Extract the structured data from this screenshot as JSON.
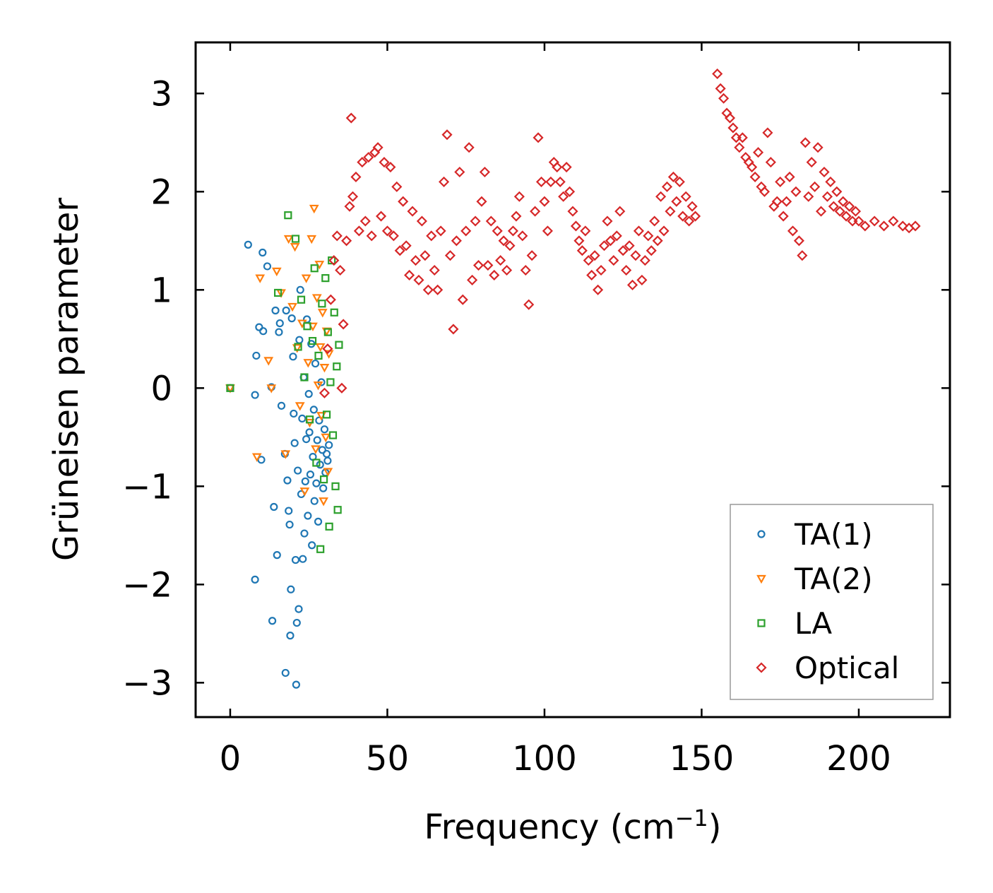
{
  "chart_data": {
    "type": "scatter",
    "title": "",
    "xlabel": "Frequency (cm",
    "xlabel_sup": "−1",
    "xlabel_end": ")",
    "ylabel": "Grüneisen parameter",
    "xlim": [
      -11,
      229
    ],
    "ylim": [
      -3.35,
      3.52
    ],
    "xticks": [
      0,
      50,
      100,
      150,
      200
    ],
    "xtick_labels": [
      "0",
      "50",
      "100",
      "150",
      "200"
    ],
    "yticks": [
      -3,
      -2,
      -1,
      0,
      1,
      2,
      3
    ],
    "ytick_labels": [
      "−3",
      "−2",
      "−1",
      "0",
      "1",
      "2",
      "3"
    ],
    "legend_position": "bottom-right",
    "series": [
      {
        "name": "TA(1)",
        "marker": "circle",
        "color": "#1f77b4",
        "points": [
          [
            0,
            0
          ],
          [
            5.7,
            1.46
          ],
          [
            7.9,
            -0.07
          ],
          [
            7.9,
            -1.95
          ],
          [
            8.3,
            0.33
          ],
          [
            9.2,
            0.62
          ],
          [
            9.9,
            -0.73
          ],
          [
            10.3,
            1.38
          ],
          [
            10.5,
            0.58
          ],
          [
            11.8,
            1.24
          ],
          [
            13.1,
            0.01
          ],
          [
            13.4,
            -2.37
          ],
          [
            13.9,
            -1.21
          ],
          [
            14.4,
            0.79
          ],
          [
            14.9,
            -1.7
          ],
          [
            15.5,
            0.57
          ],
          [
            15.8,
            0.66
          ],
          [
            16.3,
            -0.18
          ],
          [
            17.4,
            -0.67
          ],
          [
            17.6,
            -2.9
          ],
          [
            17.8,
            0.79
          ],
          [
            18.2,
            -0.94
          ],
          [
            18.6,
            -1.25
          ],
          [
            18.9,
            -1.39
          ],
          [
            19.1,
            -2.52
          ],
          [
            19.3,
            -2.05
          ],
          [
            19.6,
            0.71
          ],
          [
            20,
            0.32
          ],
          [
            20.2,
            -0.26
          ],
          [
            20.5,
            -0.56
          ],
          [
            20.8,
            -1.75
          ],
          [
            21,
            -3.02
          ],
          [
            21.2,
            -2.39
          ],
          [
            21.5,
            -0.84
          ],
          [
            21.8,
            -2.25
          ],
          [
            22,
            0.49
          ],
          [
            22.3,
            1.0
          ],
          [
            22.6,
            -1.08
          ],
          [
            22.9,
            -0.31
          ],
          [
            23.1,
            -1.74
          ],
          [
            23.4,
            0.11
          ],
          [
            23.6,
            -1.48
          ],
          [
            23.9,
            -0.95
          ],
          [
            24.2,
            -0.52
          ],
          [
            24.4,
            0.7
          ],
          [
            24.7,
            -1.3
          ],
          [
            25,
            -0.06
          ],
          [
            25.2,
            -0.45
          ],
          [
            25.5,
            -0.88
          ],
          [
            25.8,
            0.45
          ],
          [
            26,
            -1.6
          ],
          [
            26.3,
            -0.7
          ],
          [
            26.6,
            -0.22
          ],
          [
            26.8,
            -1.15
          ],
          [
            27.1,
            0.25
          ],
          [
            27.4,
            -0.97
          ],
          [
            27.7,
            -0.53
          ],
          [
            28,
            -1.36
          ],
          [
            28.3,
            -0.33
          ],
          [
            28.6,
            -0.78
          ],
          [
            29,
            0.06
          ],
          [
            29.3,
            -0.63
          ],
          [
            29.6,
            -1.02
          ],
          [
            30,
            -0.42
          ],
          [
            30.3,
            -0.86
          ],
          [
            30.7,
            -0.67
          ],
          [
            31,
            -0.74
          ],
          [
            31.4,
            -0.58
          ]
        ]
      },
      {
        "name": "TA(2)",
        "marker": "triangle-down",
        "color": "#ff7f0e",
        "points": [
          [
            0,
            0
          ],
          [
            8.5,
            -0.7
          ],
          [
            9.5,
            1.12
          ],
          [
            12.2,
            0.28
          ],
          [
            13.1,
            0.0
          ],
          [
            14.8,
            1.19
          ],
          [
            16.2,
            0.97
          ],
          [
            17.6,
            -0.67
          ],
          [
            18.6,
            1.52
          ],
          [
            19.8,
            0.83
          ],
          [
            20.6,
            1.44
          ],
          [
            21.3,
            0.41
          ],
          [
            22.2,
            -0.18
          ],
          [
            22.9,
            0.66
          ],
          [
            23.7,
            -1.05
          ],
          [
            24.2,
            1.12
          ],
          [
            24.8,
            0.26
          ],
          [
            25.3,
            -0.35
          ],
          [
            25.9,
            1.52
          ],
          [
            26.3,
            0.63
          ],
          [
            26.7,
            1.83
          ],
          [
            27.2,
            -0.62
          ],
          [
            27.6,
            0.92
          ],
          [
            28,
            0.03
          ],
          [
            28.4,
            1.26
          ],
          [
            28.7,
            0.42
          ],
          [
            29,
            -0.28
          ],
          [
            29.4,
            0.77
          ],
          [
            29.7,
            -1.15
          ],
          [
            30,
            0.21
          ],
          [
            30.4,
            -0.5
          ],
          [
            30.7,
            0.58
          ],
          [
            31.1,
            -0.85
          ],
          [
            31.4,
            0.35
          ]
        ]
      },
      {
        "name": "LA",
        "marker": "square",
        "color": "#2ca02c",
        "points": [
          [
            0,
            0
          ],
          [
            15.2,
            0.97
          ],
          [
            18.4,
            1.76
          ],
          [
            20.8,
            1.52
          ],
          [
            21.6,
            0.42
          ],
          [
            22.6,
            0.9
          ],
          [
            23.6,
            0.11
          ],
          [
            24.5,
            0.63
          ],
          [
            25.3,
            -0.32
          ],
          [
            26.2,
            0.48
          ],
          [
            26.8,
            1.22
          ],
          [
            27.4,
            -0.76
          ],
          [
            28.1,
            0.33
          ],
          [
            28.7,
            -1.64
          ],
          [
            29.2,
            0.86
          ],
          [
            29.8,
            -0.93
          ],
          [
            30.3,
            1.12
          ],
          [
            30.7,
            -0.27
          ],
          [
            31.1,
            0.57
          ],
          [
            31.5,
            -1.41
          ],
          [
            31.9,
            0.06
          ],
          [
            32.3,
            1.3
          ],
          [
            32.7,
            -0.48
          ],
          [
            33.1,
            0.77
          ],
          [
            33.5,
            -1.0
          ],
          [
            33.9,
            0.22
          ],
          [
            34.2,
            -1.24
          ],
          [
            34.6,
            0.44
          ]
        ]
      },
      {
        "name": "Optical",
        "marker": "diamond",
        "color": "#d62728",
        "points": [
          [
            30,
            -0.05
          ],
          [
            31,
            0.4
          ],
          [
            32,
            0.9
          ],
          [
            33,
            1.3
          ],
          [
            34,
            1.55
          ],
          [
            35,
            1.2
          ],
          [
            35.5,
            0.0
          ],
          [
            36,
            0.65
          ],
          [
            37,
            1.5
          ],
          [
            38,
            1.85
          ],
          [
            38.5,
            2.75
          ],
          [
            39,
            1.95
          ],
          [
            40,
            2.15
          ],
          [
            41,
            1.6
          ],
          [
            42,
            2.3
          ],
          [
            43,
            1.7
          ],
          [
            44,
            2.35
          ],
          [
            45,
            1.55
          ],
          [
            46,
            2.4
          ],
          [
            47,
            2.45
          ],
          [
            48,
            1.75
          ],
          [
            49,
            2.3
          ],
          [
            50,
            1.6
          ],
          [
            51,
            2.25
          ],
          [
            52,
            1.55
          ],
          [
            53,
            2.05
          ],
          [
            54,
            1.4
          ],
          [
            55,
            1.9
          ],
          [
            56,
            1.45
          ],
          [
            57,
            1.15
          ],
          [
            58,
            1.8
          ],
          [
            59,
            1.3
          ],
          [
            60,
            1.1
          ],
          [
            61,
            1.7
          ],
          [
            62,
            1.35
          ],
          [
            63,
            1.0
          ],
          [
            64,
            1.55
          ],
          [
            65,
            1.2
          ],
          [
            66,
            1.0
          ],
          [
            67,
            1.6
          ],
          [
            68,
            2.1
          ],
          [
            69,
            2.58
          ],
          [
            70,
            1.35
          ],
          [
            71,
            0.6
          ],
          [
            72,
            1.5
          ],
          [
            73,
            2.2
          ],
          [
            74,
            0.9
          ],
          [
            75,
            1.6
          ],
          [
            76,
            2.45
          ],
          [
            77,
            1.1
          ],
          [
            78,
            1.7
          ],
          [
            79,
            1.25
          ],
          [
            80,
            1.9
          ],
          [
            81,
            2.2
          ],
          [
            82,
            1.25
          ],
          [
            83,
            1.7
          ],
          [
            84,
            1.15
          ],
          [
            85,
            1.6
          ],
          [
            86,
            1.3
          ],
          [
            87,
            1.5
          ],
          [
            88,
            1.2
          ],
          [
            89,
            1.45
          ],
          [
            90,
            1.6
          ],
          [
            91,
            1.75
          ],
          [
            92,
            1.95
          ],
          [
            93,
            1.55
          ],
          [
            94,
            1.2
          ],
          [
            95,
            0.85
          ],
          [
            96,
            1.35
          ],
          [
            97,
            1.8
          ],
          [
            98,
            2.55
          ],
          [
            99,
            2.1
          ],
          [
            100,
            1.9
          ],
          [
            101,
            1.6
          ],
          [
            102,
            2.1
          ],
          [
            103,
            2.3
          ],
          [
            104,
            2.25
          ],
          [
            105,
            2.1
          ],
          [
            106,
            1.95
          ],
          [
            107,
            2.25
          ],
          [
            108,
            2.0
          ],
          [
            109,
            1.8
          ],
          [
            110,
            1.65
          ],
          [
            111,
            1.5
          ],
          [
            112,
            1.4
          ],
          [
            113,
            1.6
          ],
          [
            114,
            1.3
          ],
          [
            115,
            1.15
          ],
          [
            116,
            1.35
          ],
          [
            117,
            1.0
          ],
          [
            118,
            1.2
          ],
          [
            119,
            1.45
          ],
          [
            120,
            1.7
          ],
          [
            121,
            1.5
          ],
          [
            122,
            1.3
          ],
          [
            123,
            1.55
          ],
          [
            124,
            1.8
          ],
          [
            125,
            1.4
          ],
          [
            126,
            1.2
          ],
          [
            127,
            1.45
          ],
          [
            128,
            1.05
          ],
          [
            129,
            1.35
          ],
          [
            130,
            1.6
          ],
          [
            131,
            1.1
          ],
          [
            132,
            1.3
          ],
          [
            133,
            1.55
          ],
          [
            134,
            1.4
          ],
          [
            135,
            1.7
          ],
          [
            136,
            1.5
          ],
          [
            137,
            1.95
          ],
          [
            138,
            1.6
          ],
          [
            139,
            2.05
          ],
          [
            140,
            1.8
          ],
          [
            141,
            2.15
          ],
          [
            142,
            1.9
          ],
          [
            143,
            2.1
          ],
          [
            144,
            1.75
          ],
          [
            145,
            1.95
          ],
          [
            146,
            1.7
          ],
          [
            147,
            1.85
          ],
          [
            148,
            1.75
          ],
          [
            155,
            3.2
          ],
          [
            156,
            3.05
          ],
          [
            157,
            2.95
          ],
          [
            158,
            2.8
          ],
          [
            159,
            2.75
          ],
          [
            160,
            2.65
          ],
          [
            161,
            2.55
          ],
          [
            162,
            2.45
          ],
          [
            163,
            2.55
          ],
          [
            164,
            2.35
          ],
          [
            165,
            2.3
          ],
          [
            166,
            2.25
          ],
          [
            167,
            2.15
          ],
          [
            168,
            2.4
          ],
          [
            169,
            2.05
          ],
          [
            170,
            2.0
          ],
          [
            171,
            2.6
          ],
          [
            172,
            2.3
          ],
          [
            173,
            1.85
          ],
          [
            174,
            1.9
          ],
          [
            175,
            2.1
          ],
          [
            176,
            1.75
          ],
          [
            177,
            1.9
          ],
          [
            178,
            2.15
          ],
          [
            179,
            1.6
          ],
          [
            180,
            2.0
          ],
          [
            181,
            1.5
          ],
          [
            182,
            1.35
          ],
          [
            183,
            2.5
          ],
          [
            184,
            1.95
          ],
          [
            185,
            2.3
          ],
          [
            186,
            2.05
          ],
          [
            187,
            2.45
          ],
          [
            188,
            1.8
          ],
          [
            189,
            2.2
          ],
          [
            190,
            1.95
          ],
          [
            191,
            2.1
          ],
          [
            192,
            1.85
          ],
          [
            193,
            2.0
          ],
          [
            194,
            1.8
          ],
          [
            195,
            1.9
          ],
          [
            196,
            1.75
          ],
          [
            197,
            1.85
          ],
          [
            198,
            1.7
          ],
          [
            199,
            1.8
          ],
          [
            200,
            1.7
          ],
          [
            202,
            1.65
          ],
          [
            205,
            1.7
          ],
          [
            208,
            1.65
          ],
          [
            211,
            1.7
          ],
          [
            214,
            1.65
          ],
          [
            216,
            1.63
          ],
          [
            218,
            1.65
          ]
        ]
      }
    ]
  }
}
